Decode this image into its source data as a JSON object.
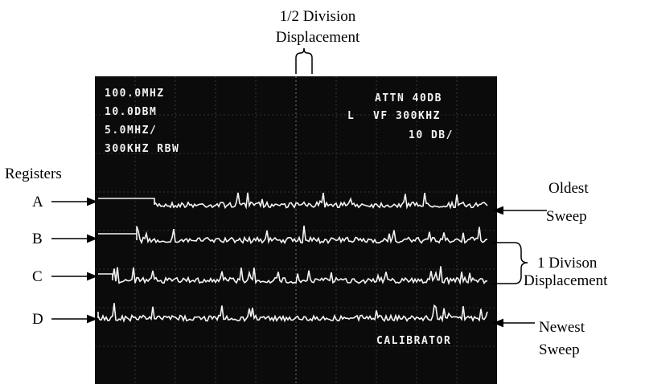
{
  "top_label": {
    "line1": "1/2 Division",
    "line2": "Displacement"
  },
  "registers": {
    "title": "Registers",
    "labels": [
      "A",
      "B",
      "C",
      "D"
    ]
  },
  "oldest": {
    "line1": "Oldest",
    "line2": "Sweep"
  },
  "division": {
    "line1": "1 Divison",
    "line2": "Displacement"
  },
  "newest": {
    "line1": "Newest",
    "line2": "Sweep"
  },
  "screen": {
    "left_readouts": [
      "100.0MHZ",
      "10.0DBM",
      "5.0MHZ/",
      "300KHZ RBW"
    ],
    "right_readouts": [
      "ATTN 40DB",
      "VF 300KHZ",
      "10 DB/"
    ],
    "marker": "L",
    "footer": "CALIBRATOR"
  }
}
